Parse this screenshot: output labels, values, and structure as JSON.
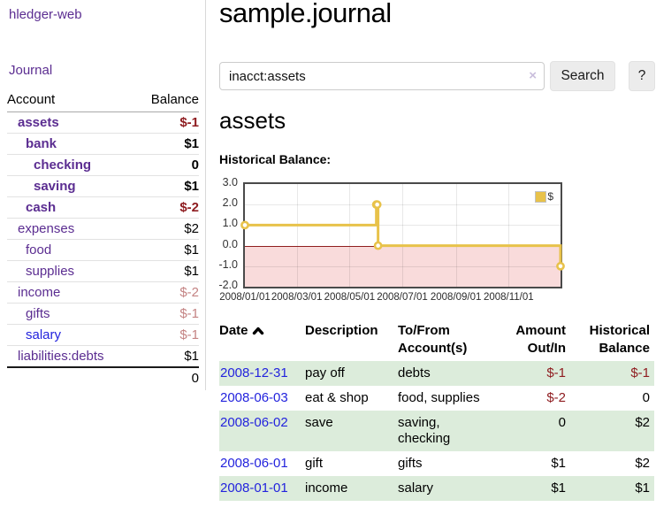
{
  "colors": {
    "purple": "#5b2d91",
    "blue": "#2323dd",
    "negative": "#8f1d21",
    "soft_negative": "#c48383",
    "row_green": "#dcecdb",
    "gold": "#e8c24a",
    "pink": "#f9dbdb",
    "zero_line": "#8f1f1f"
  },
  "sidebar": {
    "app_title": "hledger-web",
    "journal_label": "Journal",
    "accounts_header": {
      "account": "Account",
      "balance": "Balance"
    },
    "accounts": [
      {
        "name": "assets",
        "balance": "$-1",
        "depth": 0,
        "bold": true
      },
      {
        "name": "bank",
        "balance": "$1",
        "depth": 1,
        "bold": true
      },
      {
        "name": "checking",
        "balance": "0",
        "depth": 2,
        "bold": true
      },
      {
        "name": "saving",
        "balance": "$1",
        "depth": 2,
        "bold": true
      },
      {
        "name": "cash",
        "balance": "$-2",
        "depth": 1,
        "bold": true
      },
      {
        "name": "expenses",
        "balance": "$2",
        "depth": 0,
        "bold": false
      },
      {
        "name": "food",
        "balance": "$1",
        "depth": 1,
        "bold": false
      },
      {
        "name": "supplies",
        "balance": "$1",
        "depth": 1,
        "bold": false
      },
      {
        "name": "income",
        "balance": "$-2",
        "depth": 0,
        "bold": false
      },
      {
        "name": "gifts",
        "balance": "$-1",
        "depth": 1,
        "bold": false
      },
      {
        "name": "salary",
        "balance": "$-1",
        "depth": 1,
        "bold": false,
        "blue_link": true
      },
      {
        "name": "liabilities:debts",
        "balance": "$1",
        "depth": 0,
        "bold": false
      }
    ],
    "total": "0"
  },
  "main": {
    "title": "sample.journal",
    "search": {
      "value": "inacct:assets",
      "clear_icon": "×",
      "button_label": "Search",
      "help_label": "?"
    },
    "account_heading": "assets",
    "chart_label": "Historical Balance:",
    "register": {
      "headers": [
        "Date",
        "Description",
        "To/From Account(s)",
        "Amount Out/In",
        "Historical Balance"
      ],
      "rows": [
        {
          "date": "2008-12-31",
          "description": "pay off",
          "accounts": "debts",
          "amount": "$-1",
          "balance": "$-1"
        },
        {
          "date": "2008-06-03",
          "description": "eat & shop",
          "accounts": "food, supplies",
          "amount": "$-2",
          "balance": "0"
        },
        {
          "date": "2008-06-02",
          "description": "save",
          "accounts": "saving, checking",
          "amount": "0",
          "balance": "$2"
        },
        {
          "date": "2008-06-01",
          "description": "gift",
          "accounts": "gifts",
          "amount": "$1",
          "balance": "$2"
        },
        {
          "date": "2008-01-01",
          "description": "income",
          "accounts": "salary",
          "amount": "$1",
          "balance": "$1"
        }
      ]
    }
  },
  "chart_data": {
    "type": "line",
    "step": true,
    "title": "Historical Balance",
    "series": [
      {
        "name": "$",
        "points": [
          [
            "2008-01-01",
            1
          ],
          [
            "2008-06-01",
            2
          ],
          [
            "2008-06-02",
            2
          ],
          [
            "2008-06-03",
            0
          ],
          [
            "2008-12-31",
            -1
          ]
        ]
      }
    ],
    "x_range": [
      "2008-01-01",
      "2008-12-31"
    ],
    "ylim": [
      -2,
      3
    ],
    "yticks": [
      3,
      2,
      1,
      0,
      -1,
      -2
    ],
    "ytick_labels": [
      "3.0",
      "2.0",
      "1.0",
      "0.0",
      "-1.0",
      "-2.0"
    ],
    "xticks": [
      "2008-01-01",
      "2008-03-01",
      "2008-05-01",
      "2008-07-01",
      "2008-09-01",
      "2008-11-01"
    ],
    "xtick_labels": [
      "2008/01/01",
      "2008/03/01",
      "2008/05/01",
      "2008/07/01",
      "2008/09/01",
      "2008/11/01"
    ],
    "legend_position": "top-right",
    "grid": true,
    "negative_region_shaded": true
  }
}
